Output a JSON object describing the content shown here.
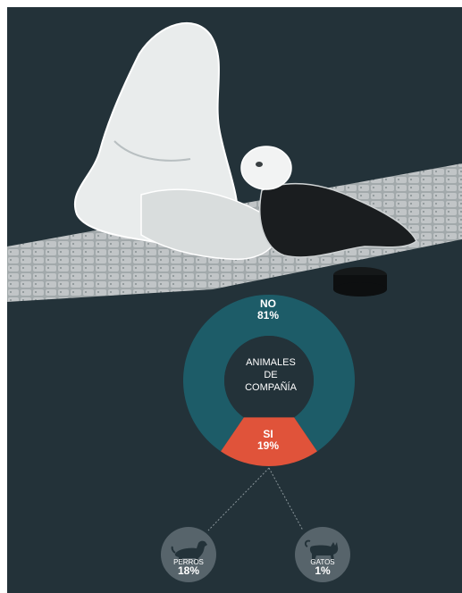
{
  "colors": {
    "background": "#233239",
    "no_segment": "#1d5c68",
    "si_segment": "#e0533a",
    "icon_circle": "#57646b"
  },
  "chart_data": {
    "type": "pie",
    "variant": "donut",
    "title": "",
    "center_label": [
      "ANIMALES",
      "DE",
      "COMPAÑÍA"
    ],
    "slices": [
      {
        "label": "NO",
        "value": 81,
        "display": "81%",
        "color": "#1d5c68"
      },
      {
        "label": "SI",
        "value": 19,
        "display": "19%",
        "color": "#e0533a"
      }
    ],
    "breakdown_of": "SI",
    "breakdown": [
      {
        "label": "PERROS",
        "value": 18,
        "display": "18%",
        "icon": "dog-icon"
      },
      {
        "label": "GATOS",
        "value": 1,
        "display": "1%",
        "icon": "cat-icon"
      }
    ]
  }
}
